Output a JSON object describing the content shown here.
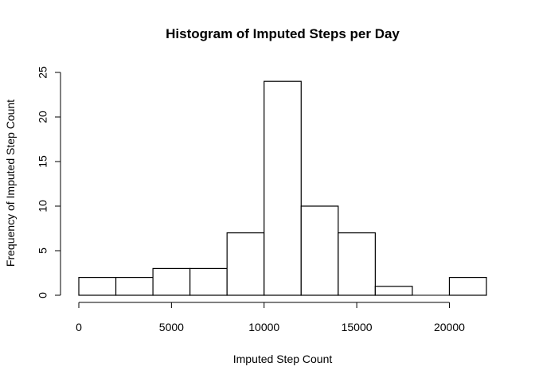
{
  "chart_data": {
    "type": "bar",
    "title": "Histogram of Imputed Steps per Day",
    "xlabel": "Imputed Step Count",
    "ylabel": "Frequency of Imputed Step Count",
    "bins": [
      {
        "from": 0,
        "to": 2000,
        "count": 2
      },
      {
        "from": 2000,
        "to": 4000,
        "count": 2
      },
      {
        "from": 4000,
        "to": 6000,
        "count": 3
      },
      {
        "from": 6000,
        "to": 8000,
        "count": 3
      },
      {
        "from": 8000,
        "to": 10000,
        "count": 7
      },
      {
        "from": 10000,
        "to": 12000,
        "count": 24
      },
      {
        "from": 12000,
        "to": 14000,
        "count": 10
      },
      {
        "from": 14000,
        "to": 16000,
        "count": 7
      },
      {
        "from": 16000,
        "to": 18000,
        "count": 1
      },
      {
        "from": 18000,
        "to": 20000,
        "count": 0
      },
      {
        "from": 20000,
        "to": 22000,
        "count": 2
      }
    ],
    "xticks": [
      0,
      5000,
      10000,
      15000,
      20000
    ],
    "yticks": [
      0,
      5,
      10,
      15,
      20,
      25
    ],
    "xlim": [
      0,
      22000
    ],
    "ylim": [
      0,
      25
    ],
    "grid": false,
    "legend": "none"
  }
}
